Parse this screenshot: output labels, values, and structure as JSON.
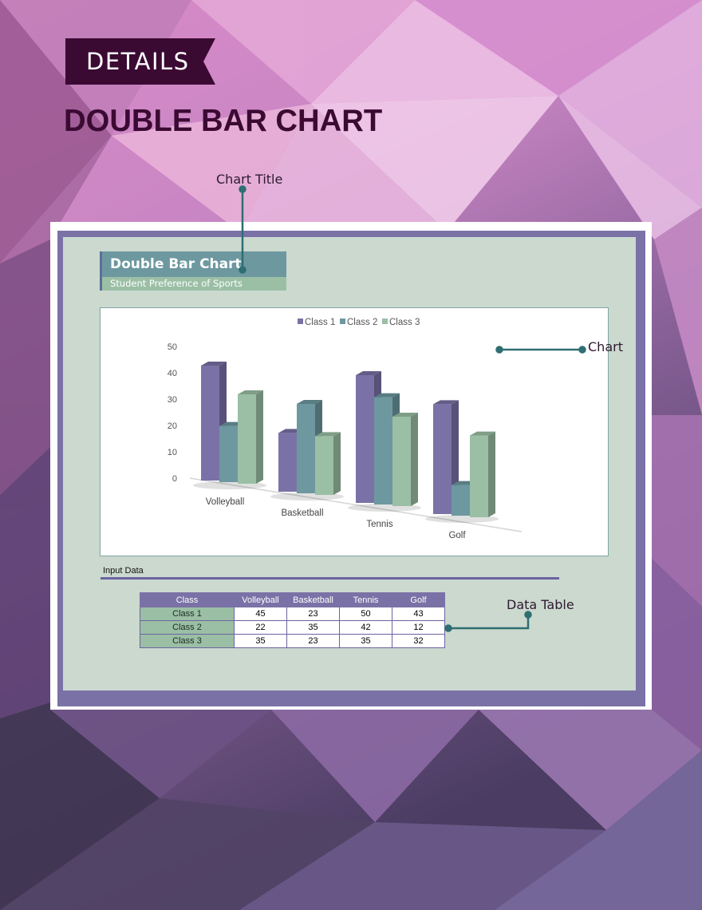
{
  "ribbon": {
    "label": "DETAILS"
  },
  "heading": "DOUBLE BAR CHART",
  "callouts": {
    "chart_title": "Chart Title",
    "chart": "Chart",
    "data_table": "Data Table"
  },
  "colors": {
    "heading": "#3b0a33",
    "ribbon": "#3b0a33",
    "frame": "#7a72a6",
    "panel": "#cbd9cf",
    "callout_line": "#2f6e72"
  },
  "sheet": {
    "title": "Double Bar Chart",
    "subtitle": "Student Preference of Sports",
    "input_label": "Input Data"
  },
  "chart_data": {
    "type": "bar",
    "categories": [
      "Volleyball",
      "Basketball",
      "Tennis",
      "Golf"
    ],
    "series": [
      {
        "name": "Class 1",
        "values": [
          45,
          23,
          50,
          43
        ],
        "color": "#7a72a6"
      },
      {
        "name": "Class 2",
        "values": [
          22,
          35,
          42,
          12
        ],
        "color": "#6d98a0"
      },
      {
        "name": "Class 3",
        "values": [
          35,
          23,
          35,
          32
        ],
        "color": "#9bbfa5"
      }
    ],
    "yticks": [
      "0",
      "10",
      "20",
      "30",
      "40",
      "50"
    ],
    "ylim": [
      0,
      50
    ],
    "legend_position": "top",
    "grid": false,
    "style": "3d-clustered-column"
  },
  "table": {
    "headers": [
      "Class",
      "Volleyball",
      "Basketball",
      "Tennis",
      "Golf"
    ],
    "rows": [
      [
        "Class 1",
        "45",
        "23",
        "50",
        "43"
      ],
      [
        "Class 2",
        "22",
        "35",
        "42",
        "12"
      ],
      [
        "Class 3",
        "35",
        "23",
        "35",
        "32"
      ]
    ]
  }
}
